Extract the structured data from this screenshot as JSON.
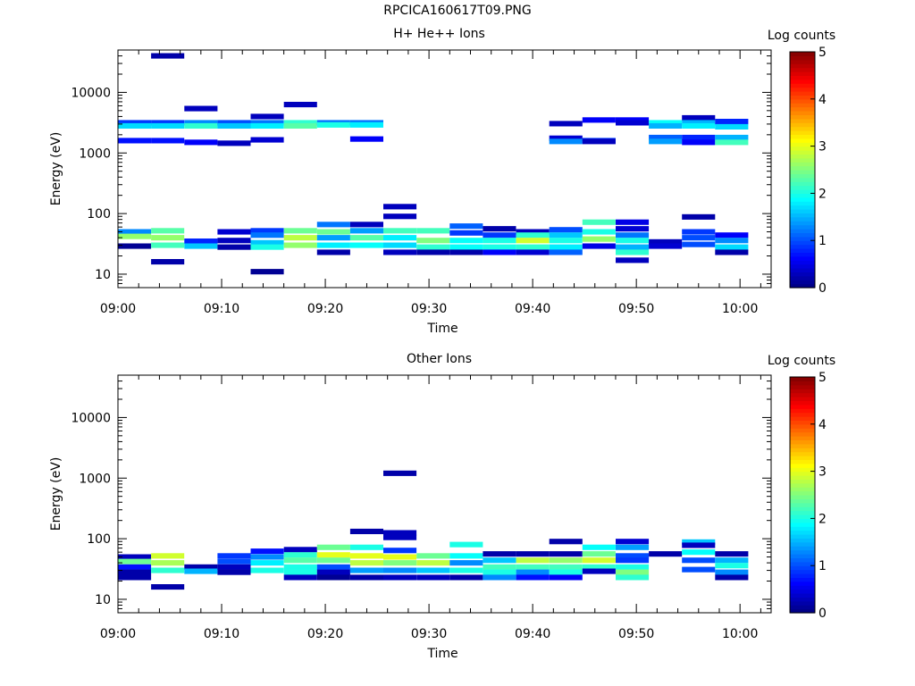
{
  "title": "RPCICA160617T09.PNG",
  "colormap": [
    "#000080",
    "#0000ff",
    "#0080ff",
    "#00ffff",
    "#80ff80",
    "#ffff00",
    "#ff8000",
    "#ff0000",
    "#800000"
  ],
  "chart_data": [
    {
      "type": "heatmap",
      "title": "H+ He++ Ions",
      "xlabel": "Time",
      "ylabel": "Energy (eV)",
      "x_ticks": [
        "09:00",
        "09:10",
        "09:20",
        "09:30",
        "09:40",
        "09:50",
        "10:00"
      ],
      "x_range_min": [
        0,
        63
      ],
      "y_scale": "log",
      "y_ticks": [
        "10",
        "100",
        "1000",
        "10000"
      ],
      "ylim": [
        6,
        50000
      ],
      "colorbar": {
        "label": "Log counts",
        "range": [
          0,
          5
        ],
        "ticks": [
          "0",
          "1",
          "2",
          "3",
          "4",
          "5"
        ]
      },
      "grid": false,
      "cells": [
        [
          0,
          3.2,
          3150,
          0.9
        ],
        [
          0,
          3.2,
          2800,
          1.7
        ],
        [
          0,
          3.2,
          1600,
          0.7
        ],
        [
          0,
          3.2,
          50,
          1.3
        ],
        [
          0,
          3.2,
          42,
          2.6
        ],
        [
          0,
          3.2,
          29,
          0.1
        ],
        [
          3.2,
          6.4,
          40000,
          0.2
        ],
        [
          3.2,
          6.4,
          3150,
          0.9
        ],
        [
          3.2,
          6.4,
          2800,
          1.7
        ],
        [
          3.2,
          6.4,
          1600,
          0.7
        ],
        [
          3.2,
          6.4,
          52,
          2.3
        ],
        [
          3.2,
          6.4,
          40,
          2.6
        ],
        [
          3.2,
          6.4,
          30,
          2.2
        ],
        [
          3.2,
          6.4,
          16,
          0.2
        ],
        [
          6.4,
          9.6,
          5400,
          0.3
        ],
        [
          6.4,
          9.6,
          3150,
          1.3
        ],
        [
          6.4,
          9.6,
          2800,
          2.1
        ],
        [
          6.4,
          9.6,
          1500,
          0.6
        ],
        [
          6.4,
          9.6,
          35,
          0.8
        ],
        [
          6.4,
          9.6,
          29,
          1.6
        ],
        [
          9.6,
          12.8,
          3150,
          1.0
        ],
        [
          9.6,
          12.8,
          2800,
          1.6
        ],
        [
          9.6,
          12.8,
          1450,
          0.3
        ],
        [
          9.6,
          12.8,
          50,
          0.4
        ],
        [
          9.6,
          12.8,
          36,
          0.3
        ],
        [
          9.6,
          12.8,
          28,
          0.2
        ],
        [
          12.8,
          16,
          4000,
          0.3
        ],
        [
          12.8,
          16,
          3150,
          1.2
        ],
        [
          12.8,
          16,
          2800,
          1.8
        ],
        [
          12.8,
          16,
          1650,
          0.4
        ],
        [
          12.8,
          16,
          52,
          0.9
        ],
        [
          12.8,
          16,
          44,
          1.2
        ],
        [
          12.8,
          16,
          33,
          1.6
        ],
        [
          12.8,
          16,
          28,
          2.0
        ],
        [
          12.8,
          16,
          11,
          0.1
        ],
        [
          16,
          19.2,
          6300,
          0.3
        ],
        [
          16,
          19.2,
          3150,
          2.1
        ],
        [
          16,
          19.2,
          2800,
          2.3
        ],
        [
          16,
          19.2,
          52,
          2.4
        ],
        [
          16,
          19.2,
          40,
          2.8
        ],
        [
          16,
          19.2,
          30,
          2.6
        ],
        [
          19.2,
          22.4,
          3150,
          1.2
        ],
        [
          19.2,
          22.4,
          2900,
          2.0
        ],
        [
          19.2,
          22.4,
          66,
          1.2
        ],
        [
          19.2,
          22.4,
          50,
          2.4
        ],
        [
          19.2,
          22.4,
          40,
          1.4
        ],
        [
          19.2,
          22.4,
          30,
          1.8
        ],
        [
          19.2,
          22.4,
          23,
          0.2
        ],
        [
          22.4,
          25.6,
          3150,
          1.2
        ],
        [
          22.4,
          25.6,
          2900,
          1.8
        ],
        [
          22.4,
          25.6,
          1700,
          0.6
        ],
        [
          22.4,
          25.6,
          66,
          0.3
        ],
        [
          22.4,
          25.6,
          52,
          1.4
        ],
        [
          22.4,
          25.6,
          40,
          2.3
        ],
        [
          22.4,
          25.6,
          30,
          1.9
        ],
        [
          25.6,
          28.8,
          130,
          0.3
        ],
        [
          25.6,
          28.8,
          90,
          0.3
        ],
        [
          25.6,
          28.8,
          52,
          2.2
        ],
        [
          25.6,
          28.8,
          40,
          1.8
        ],
        [
          25.6,
          28.8,
          30,
          1.7
        ],
        [
          25.6,
          28.8,
          23,
          0.3
        ],
        [
          28.8,
          32,
          52,
          2.2
        ],
        [
          28.8,
          32,
          36,
          2.5
        ],
        [
          28.8,
          32,
          28,
          2.1
        ],
        [
          28.8,
          32,
          23,
          0.2
        ],
        [
          32,
          35.2,
          62,
          1.1
        ],
        [
          32,
          35.2,
          48,
          0.9
        ],
        [
          32,
          35.2,
          36,
          1.9
        ],
        [
          32,
          35.2,
          28,
          1.9
        ],
        [
          32,
          35.2,
          23,
          0.2
        ],
        [
          35.2,
          38.4,
          56,
          0.2
        ],
        [
          35.2,
          38.4,
          44,
          0.9
        ],
        [
          35.2,
          38.4,
          36,
          2.0
        ],
        [
          35.2,
          38.4,
          28,
          2.0
        ],
        [
          35.2,
          38.4,
          23,
          0.6
        ],
        [
          38.4,
          41.6,
          50,
          0.3
        ],
        [
          38.4,
          41.6,
          44,
          2.1
        ],
        [
          38.4,
          41.6,
          36,
          2.9
        ],
        [
          38.4,
          41.6,
          28,
          2.1
        ],
        [
          38.4,
          41.6,
          23,
          0.4
        ],
        [
          41.6,
          44.8,
          3050,
          0.3
        ],
        [
          41.6,
          44.8,
          1750,
          0.4
        ],
        [
          41.6,
          44.8,
          1550,
          1.3
        ],
        [
          41.6,
          44.8,
          54,
          1.0
        ],
        [
          41.6,
          44.8,
          44,
          1.6
        ],
        [
          41.6,
          44.8,
          36,
          2.0
        ],
        [
          41.6,
          44.8,
          28,
          1.8
        ],
        [
          41.6,
          44.8,
          23,
          1.1
        ],
        [
          44.8,
          48,
          3500,
          0.6
        ],
        [
          44.8,
          48,
          1600,
          0.9
        ],
        [
          44.8,
          48,
          1550,
          0.3
        ],
        [
          44.8,
          48,
          72,
          2.2
        ],
        [
          44.8,
          48,
          50,
          2.0
        ],
        [
          44.8,
          48,
          38,
          2.6
        ],
        [
          44.8,
          48,
          29,
          0.5
        ],
        [
          48,
          51.2,
          3500,
          0.6
        ],
        [
          48,
          51.2,
          3150,
          0.4
        ],
        [
          48,
          51.2,
          72,
          0.5
        ],
        [
          48,
          51.2,
          56,
          0.4
        ],
        [
          48,
          51.2,
          44,
          1.2
        ],
        [
          48,
          51.2,
          36,
          2.0
        ],
        [
          48,
          51.2,
          28,
          1.5
        ],
        [
          48,
          51.2,
          23,
          2.1
        ],
        [
          48,
          51.2,
          17,
          0.3
        ],
        [
          51.2,
          54.4,
          3150,
          1.9
        ],
        [
          51.2,
          54.4,
          2800,
          1.5
        ],
        [
          51.2,
          54.4,
          1800,
          1.1
        ],
        [
          51.2,
          54.4,
          1550,
          1.4
        ],
        [
          51.2,
          54.4,
          34,
          0.3
        ],
        [
          51.2,
          54.4,
          29,
          0.4
        ],
        [
          54.4,
          57.6,
          3800,
          0.3
        ],
        [
          54.4,
          57.6,
          3150,
          1.5
        ],
        [
          54.4,
          57.6,
          2800,
          1.8
        ],
        [
          54.4,
          57.6,
          1800,
          0.8
        ],
        [
          54.4,
          57.6,
          1500,
          0.6
        ],
        [
          54.4,
          57.6,
          88,
          0.2
        ],
        [
          54.4,
          57.6,
          50,
          0.9
        ],
        [
          54.4,
          57.6,
          40,
          1.0
        ],
        [
          54.4,
          57.6,
          31,
          1.0
        ],
        [
          57.6,
          60.8,
          3300,
          0.8
        ],
        [
          57.6,
          60.8,
          2700,
          1.7
        ],
        [
          57.6,
          60.8,
          1800,
          1.5
        ],
        [
          57.6,
          60.8,
          1500,
          2.2
        ],
        [
          57.6,
          60.8,
          44,
          0.6
        ],
        [
          57.6,
          60.8,
          36,
          1.3
        ],
        [
          57.6,
          60.8,
          28,
          1.7
        ],
        [
          57.6,
          60.8,
          23,
          0.2
        ]
      ]
    },
    {
      "type": "heatmap",
      "title": "Other Ions",
      "xlabel": "Time",
      "ylabel": "Energy (eV)",
      "x_ticks": [
        "09:00",
        "09:10",
        "09:20",
        "09:30",
        "09:40",
        "09:50",
        "10:00"
      ],
      "x_range_min": [
        0,
        63
      ],
      "y_scale": "log",
      "y_ticks": [
        "10",
        "100",
        "1000",
        "10000"
      ],
      "ylim": [
        6,
        50000
      ],
      "colorbar": {
        "label": "Log counts",
        "range": [
          0,
          5
        ],
        "ticks": [
          "0",
          "1",
          "2",
          "3",
          "4",
          "5"
        ]
      },
      "grid": false,
      "cells": [
        [
          0,
          3.2,
          50,
          0.3
        ],
        [
          0,
          3.2,
          42,
          2.4
        ],
        [
          0,
          3.2,
          34,
          0.7
        ],
        [
          0,
          3.2,
          28,
          0.2
        ],
        [
          0,
          3.2,
          23,
          0.2
        ],
        [
          3.2,
          6.4,
          52,
          2.9
        ],
        [
          3.2,
          6.4,
          40,
          2.7
        ],
        [
          3.2,
          6.4,
          30,
          2.1
        ],
        [
          3.2,
          6.4,
          16,
          0.2
        ],
        [
          6.4,
          9.6,
          34,
          0.2
        ],
        [
          6.4,
          9.6,
          29,
          1.5
        ],
        [
          9.6,
          12.8,
          52,
          0.9
        ],
        [
          9.6,
          12.8,
          42,
          1.0
        ],
        [
          9.6,
          12.8,
          34,
          0.3
        ],
        [
          9.6,
          12.8,
          28,
          0.2
        ],
        [
          12.8,
          16,
          62,
          0.7
        ],
        [
          12.8,
          16,
          50,
          1.3
        ],
        [
          12.8,
          16,
          40,
          1.8
        ],
        [
          12.8,
          16,
          30,
          2.0
        ],
        [
          16,
          19.2,
          66,
          0.3
        ],
        [
          16,
          19.2,
          54,
          2.1
        ],
        [
          16,
          19.2,
          44,
          2.3
        ],
        [
          16,
          19.2,
          34,
          2.0
        ],
        [
          16,
          19.2,
          28,
          2.0
        ],
        [
          16,
          19.2,
          23,
          0.3
        ],
        [
          19.2,
          22.4,
          72,
          2.4
        ],
        [
          19.2,
          22.4,
          54,
          3.0
        ],
        [
          19.2,
          22.4,
          44,
          2.4
        ],
        [
          19.2,
          22.4,
          34,
          1.0
        ],
        [
          19.2,
          22.4,
          28,
          0.3
        ],
        [
          19.2,
          22.4,
          23,
          0.1
        ],
        [
          22.4,
          25.6,
          132,
          0.2
        ],
        [
          22.4,
          25.6,
          72,
          2.0
        ],
        [
          22.4,
          25.6,
          52,
          3.0
        ],
        [
          22.4,
          25.6,
          40,
          2.8
        ],
        [
          22.4,
          25.6,
          30,
          1.4
        ],
        [
          22.4,
          25.6,
          23,
          0.2
        ],
        [
          25.6,
          28.8,
          1200,
          0.2
        ],
        [
          25.6,
          28.8,
          125,
          0.3
        ],
        [
          25.6,
          28.8,
          105,
          0.3
        ],
        [
          25.6,
          28.8,
          64,
          0.9
        ],
        [
          25.6,
          28.8,
          50,
          3.0
        ],
        [
          25.6,
          28.8,
          40,
          2.5
        ],
        [
          25.6,
          28.8,
          30,
          1.3
        ],
        [
          25.6,
          28.8,
          23,
          0.3
        ],
        [
          28.8,
          32,
          52,
          2.4
        ],
        [
          28.8,
          32,
          40,
          2.8
        ],
        [
          28.8,
          32,
          30,
          1.6
        ],
        [
          28.8,
          32,
          23,
          0.3
        ],
        [
          32,
          35.2,
          80,
          2.0
        ],
        [
          32,
          35.2,
          52,
          1.9
        ],
        [
          32,
          35.2,
          40,
          1.3
        ],
        [
          32,
          35.2,
          30,
          2.0
        ],
        [
          32,
          35.2,
          23,
          0.2
        ],
        [
          35.2,
          38.4,
          56,
          0.2
        ],
        [
          35.2,
          38.4,
          44,
          1.6
        ],
        [
          35.2,
          38.4,
          34,
          2.2
        ],
        [
          35.2,
          38.4,
          28,
          2.0
        ],
        [
          35.2,
          38.4,
          23,
          1.3
        ],
        [
          38.4,
          41.6,
          56,
          0.2
        ],
        [
          38.4,
          41.6,
          44,
          2.8
        ],
        [
          38.4,
          41.6,
          34,
          2.2
        ],
        [
          38.4,
          41.6,
          28,
          1.3
        ],
        [
          38.4,
          41.6,
          23,
          0.7
        ],
        [
          41.6,
          44.8,
          90,
          0.2
        ],
        [
          41.6,
          44.8,
          56,
          0.2
        ],
        [
          41.6,
          44.8,
          44,
          2.6
        ],
        [
          41.6,
          44.8,
          34,
          2.2
        ],
        [
          41.6,
          44.8,
          28,
          2.0
        ],
        [
          41.6,
          44.8,
          23,
          0.6
        ],
        [
          44.8,
          48,
          72,
          1.9
        ],
        [
          44.8,
          48,
          56,
          2.4
        ],
        [
          44.8,
          48,
          44,
          2.9
        ],
        [
          44.8,
          48,
          34,
          2.1
        ],
        [
          44.8,
          48,
          29,
          0.3
        ],
        [
          48,
          51.2,
          90,
          0.4
        ],
        [
          48,
          51.2,
          72,
          1.4
        ],
        [
          48,
          51.2,
          52,
          1.0
        ],
        [
          48,
          51.2,
          44,
          0.9
        ],
        [
          48,
          51.2,
          34,
          2.0
        ],
        [
          48,
          51.2,
          28,
          2.5
        ],
        [
          48,
          51.2,
          23,
          2.1
        ],
        [
          51.2,
          54.4,
          56,
          0.2
        ],
        [
          54.4,
          57.6,
          88,
          1.6
        ],
        [
          54.4,
          57.6,
          78,
          0.3
        ],
        [
          54.4,
          57.6,
          60,
          1.9
        ],
        [
          54.4,
          57.6,
          44,
          1.0
        ],
        [
          54.4,
          57.6,
          31,
          1.0
        ],
        [
          57.6,
          60.8,
          56,
          0.2
        ],
        [
          57.6,
          60.8,
          44,
          1.5
        ],
        [
          57.6,
          60.8,
          36,
          2.0
        ],
        [
          57.6,
          60.8,
          28,
          1.3
        ],
        [
          57.6,
          60.8,
          23,
          0.2
        ]
      ]
    }
  ]
}
